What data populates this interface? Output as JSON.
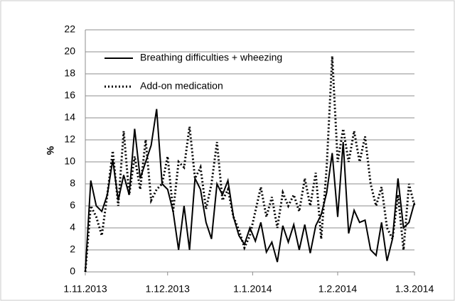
{
  "chart_data": {
    "type": "line",
    "y_label": "%",
    "x": [
      "1.11.2013",
      "3.11.2013",
      "5.11.2013",
      "7.11.2013",
      "9.11.2013",
      "11.11.2013",
      "13.11.2013",
      "15.11.2013",
      "17.11.2013",
      "19.11.2013",
      "21.11.2013",
      "23.11.2013",
      "25.11.2013",
      "27.11.2013",
      "29.11.2013",
      "1.12.2013",
      "3.12.2013",
      "5.12.2013",
      "7.12.2013",
      "9.12.2013",
      "11.12.2013",
      "13.12.2013",
      "15.12.2013",
      "17.12.2013",
      "19.12.2013",
      "21.12.2013",
      "23.12.2013",
      "25.12.2013",
      "27.12.2013",
      "29.12.2013",
      "31.12.2013",
      "2.1.2014",
      "4.1.2014",
      "6.1.2014",
      "8.1.2014",
      "10.1.2014",
      "12.1.2014",
      "14.1.2014",
      "16.1.2014",
      "18.1.2014",
      "20.1.2014",
      "22.1.2014",
      "24.1.2014",
      "26.1.2014",
      "28.1.2014",
      "30.1.2014",
      "1.2.2014",
      "3.2.2014",
      "5.2.2014",
      "7.2.2014",
      "9.2.2014",
      "11.2.2014",
      "13.2.2014",
      "15.2.2014",
      "17.2.2014",
      "19.2.2014",
      "21.2.2014",
      "23.2.2014",
      "25.2.2014",
      "27.2.2014",
      "1.3.2014"
    ],
    "series": [
      {
        "name": "Breathing difficulties + wheezing",
        "color": "#000000",
        "style": "solid",
        "values": [
          0,
          8.3,
          6,
          5.5,
          7,
          10.2,
          6.5,
          8.8,
          7,
          13,
          8.5,
          10,
          11.5,
          14.8,
          8,
          7.5,
          5.5,
          2,
          6,
          2,
          8.5,
          7.5,
          4.5,
          3,
          8,
          7,
          8.3,
          5,
          3.3,
          2.5,
          4,
          2.8,
          4.5,
          1.8,
          2.7,
          0.9,
          4.2,
          2.7,
          4.3,
          2,
          4.3,
          1.7,
          4.2,
          5.2,
          7.2,
          10.8,
          5,
          11.8,
          3.5,
          5.6,
          4.5,
          4.7,
          2,
          1.5,
          4.5,
          1,
          3,
          8.5,
          4,
          4.5,
          6.3
        ]
      },
      {
        "name": "Add-on medication",
        "color": "#000000",
        "style": "dotted",
        "values": [
          0,
          6,
          5,
          3.3,
          7,
          11,
          6,
          12.8,
          7,
          10.5,
          7.5,
          12,
          6.5,
          7.5,
          8,
          10.5,
          5.5,
          10,
          9.5,
          13.2,
          8.5,
          9.5,
          5.7,
          8,
          11.8,
          6.5,
          7.5,
          5,
          3.8,
          2.2,
          3.3,
          5.5,
          7.7,
          5,
          6.8,
          4,
          7.2,
          6,
          7,
          5.5,
          8.5,
          6,
          9,
          3,
          9.5,
          19.6,
          10,
          13,
          10,
          12.8,
          10,
          12.3,
          8,
          6,
          7.7,
          4,
          3,
          7,
          2,
          8,
          6
        ]
      }
    ],
    "xlim": [
      "1.11.2013",
      "1.3.2014"
    ],
    "xticks": [
      "1.11.2013",
      "1.12.2013",
      "1.1.2014",
      "1.2.2014",
      "1.3.2014"
    ],
    "ylim": [
      0,
      22
    ],
    "yticks": [
      0,
      2,
      4,
      6,
      8,
      10,
      12,
      14,
      16,
      18,
      20,
      22
    ],
    "grid": true,
    "legend": "upper-left"
  }
}
